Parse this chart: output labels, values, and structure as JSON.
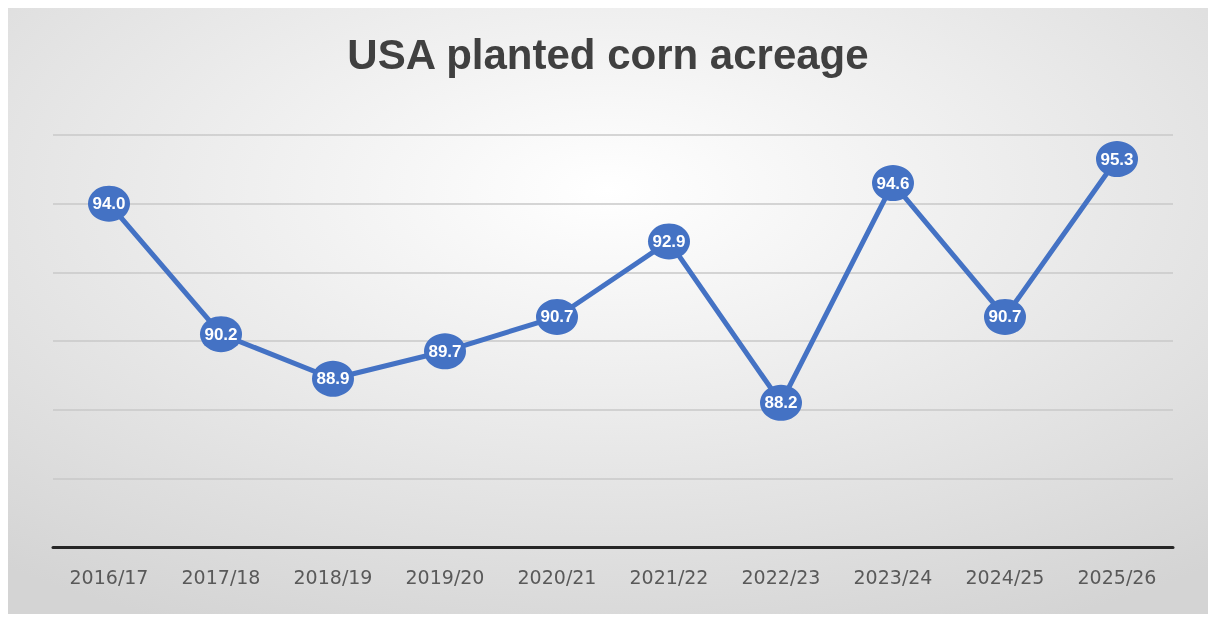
{
  "chart_data": {
    "type": "line",
    "title": "USA planted corn acreage",
    "categories": [
      "2016/17",
      "2017/18",
      "2018/19",
      "2019/20",
      "2020/21",
      "2021/22",
      "2022/23",
      "2023/24",
      "2024/25",
      "2025/26"
    ],
    "values": [
      94.0,
      90.2,
      88.9,
      89.7,
      90.7,
      92.9,
      88.2,
      94.6,
      90.7,
      95.3
    ],
    "color": "#4472c4",
    "ylim": [
      84,
      96
    ],
    "yticks": [
      {
        "value": 84,
        "label": null
      },
      {
        "value": 86,
        "label": null
      },
      {
        "value": 88,
        "label": null
      },
      {
        "value": 90,
        "label": null
      },
      {
        "value": 92,
        "label": null
      },
      {
        "value": 94,
        "label": null
      },
      {
        "value": 96,
        "label": null
      }
    ],
    "value_labels": [
      "94.0",
      "90.2",
      "88.9",
      "89.7",
      "90.7",
      "92.9",
      "88.2",
      "94.6",
      "90.7",
      "95.3"
    ],
    "grid": "y",
    "tick_labels": "x",
    "marker": "circle",
    "line_style": "solid"
  }
}
